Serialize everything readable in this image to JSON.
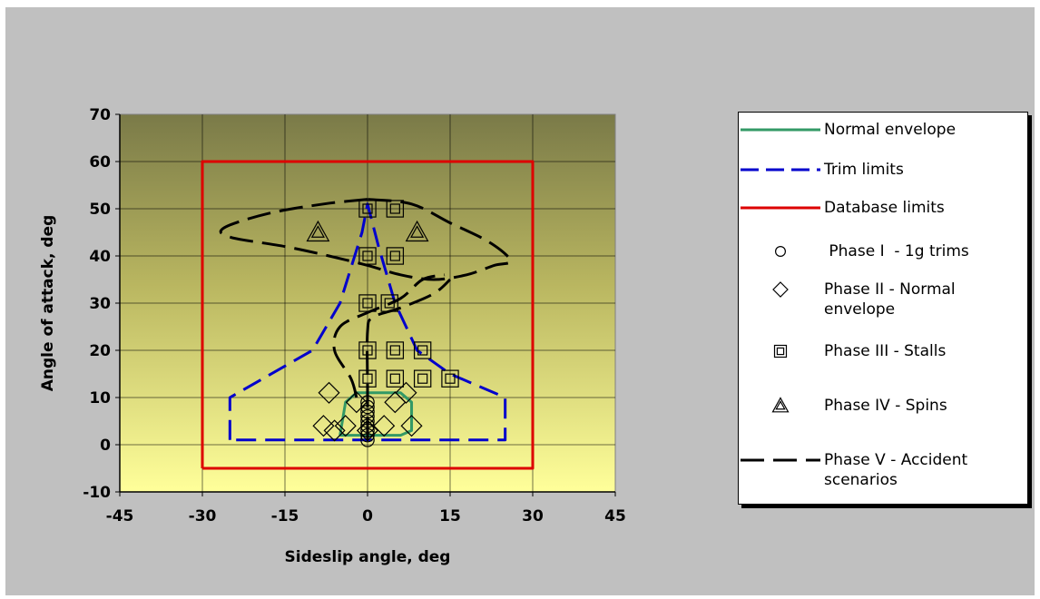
{
  "chart_data": {
    "type": "scatter",
    "title": "",
    "xlabel": "Sideslip angle, deg",
    "ylabel": "Angle of attack, deg",
    "xlim": [
      -45,
      45
    ],
    "ylim": [
      -10,
      70
    ],
    "xticks": [
      -45,
      -30,
      -15,
      0,
      15,
      30,
      45
    ],
    "yticks": [
      -10,
      0,
      10,
      20,
      30,
      40,
      50,
      60,
      70
    ],
    "grid": true,
    "legend_position": "right",
    "colors": {
      "normal": "#339966",
      "trim": "#0000cc",
      "database": "#dd0000",
      "markers": "#000000",
      "accident": "#000000"
    },
    "series": [
      {
        "name": "Normal envelope",
        "kind": "line",
        "style": "solid",
        "color": "#339966",
        "points": [
          [
            -5,
            2
          ],
          [
            -4,
            9
          ],
          [
            -2,
            11
          ],
          [
            6,
            11
          ],
          [
            8,
            9
          ],
          [
            8,
            3
          ],
          [
            6,
            2
          ],
          [
            -5,
            2
          ]
        ]
      },
      {
        "name": "Trim limits",
        "kind": "line",
        "style": "dashed",
        "color": "#0000cc",
        "points": [
          [
            -25,
            1
          ],
          [
            -25,
            10
          ],
          [
            -10,
            20
          ],
          [
            -5,
            30
          ],
          [
            -1,
            45
          ],
          [
            0,
            51
          ],
          [
            2,
            42
          ],
          [
            5,
            30
          ],
          [
            9,
            20
          ],
          [
            15,
            15
          ],
          [
            25,
            10
          ],
          [
            25,
            1
          ],
          [
            -25,
            1
          ]
        ]
      },
      {
        "name": "Database limits",
        "kind": "line",
        "style": "solid",
        "color": "#dd0000",
        "points": [
          [
            -30,
            -5
          ],
          [
            -30,
            60
          ],
          [
            30,
            60
          ],
          [
            30,
            -5
          ],
          [
            -30,
            -5
          ]
        ]
      },
      {
        "name": " Phase I  - 1g trims",
        "kind": "marker",
        "marker": "circle",
        "points": [
          [
            0,
            1
          ],
          [
            0,
            2
          ],
          [
            0,
            3
          ],
          [
            0,
            4
          ],
          [
            0,
            5
          ],
          [
            0,
            6
          ],
          [
            0,
            7
          ],
          [
            0,
            8
          ],
          [
            0,
            9
          ]
        ]
      },
      {
        "name": "Phase II - Normal envelope",
        "kind": "marker",
        "marker": "diamond",
        "points": [
          [
            -7,
            11
          ],
          [
            -2,
            9
          ],
          [
            5,
            9
          ],
          [
            7,
            11
          ],
          [
            -8,
            4
          ],
          [
            -4,
            4
          ],
          [
            3,
            4
          ],
          [
            8,
            4
          ],
          [
            -6,
            3
          ],
          [
            0,
            3
          ]
        ]
      },
      {
        "name": "Phase III - Stalls",
        "kind": "marker",
        "marker": "square",
        "points": [
          [
            0,
            50
          ],
          [
            5,
            50
          ],
          [
            0,
            40
          ],
          [
            5,
            40
          ],
          [
            0,
            30
          ],
          [
            4,
            30
          ],
          [
            0,
            20
          ],
          [
            5,
            20
          ],
          [
            10,
            20
          ],
          [
            0,
            14
          ],
          [
            5,
            14
          ],
          [
            10,
            14
          ],
          [
            15,
            14
          ]
        ]
      },
      {
        "name": "Phase IV - Spins",
        "kind": "marker",
        "marker": "triangle",
        "points": [
          [
            -9,
            45
          ],
          [
            9,
            45
          ]
        ]
      },
      {
        "name": "Phase V - Accident scenarios",
        "kind": "line",
        "style": "longdash",
        "color": "#000000",
        "curves": [
          [
            [
              0,
              52
            ],
            [
              -8,
              51
            ],
            [
              -18,
              49
            ],
            [
              -26,
              46
            ],
            [
              -25,
              44
            ],
            [
              -15,
              42
            ],
            [
              -7,
              40
            ],
            [
              0,
              38
            ],
            [
              6,
              36
            ],
            [
              12,
              35
            ],
            [
              18,
              36
            ],
            [
              23,
              38
            ],
            [
              26,
              39
            ],
            [
              22,
              43
            ],
            [
              15,
              47
            ],
            [
              8,
              51
            ],
            [
              0,
              52
            ]
          ],
          [
            [
              -2,
              10
            ],
            [
              -3,
              14
            ],
            [
              -6,
              20
            ],
            [
              -5,
              25
            ],
            [
              0,
              28
            ],
            [
              6,
              31
            ],
            [
              10,
              35
            ],
            [
              14,
              36
            ]
          ],
          [
            [
              0,
              1
            ],
            [
              0,
              12
            ],
            [
              0,
              24
            ],
            [
              1,
              27
            ],
            [
              6,
              29
            ],
            [
              12,
              32
            ],
            [
              15,
              35
            ]
          ]
        ]
      }
    ]
  },
  "legend": {
    "items": [
      {
        "label": "Normal envelope",
        "symbol": "solid-line",
        "color": "#339966"
      },
      {
        "label": "Trim limits",
        "symbol": "dashed-line",
        "color": "#0000cc"
      },
      {
        "label": "Database limits",
        "symbol": "solid-line",
        "color": "#dd0000"
      },
      {
        "label": " Phase I  - 1g trims",
        "symbol": "circle",
        "color": "#000000"
      },
      {
        "label": "Phase II - Normal\nenvelope",
        "symbol": "diamond",
        "color": "#000000"
      },
      {
        "label": "Phase III - Stalls",
        "symbol": "square",
        "color": "#000000"
      },
      {
        "label": "Phase IV - Spins",
        "symbol": "triangle",
        "color": "#000000"
      },
      {
        "label": "Phase V - Accident\nscenarios",
        "symbol": "long-dash-line",
        "color": "#000000"
      }
    ]
  }
}
